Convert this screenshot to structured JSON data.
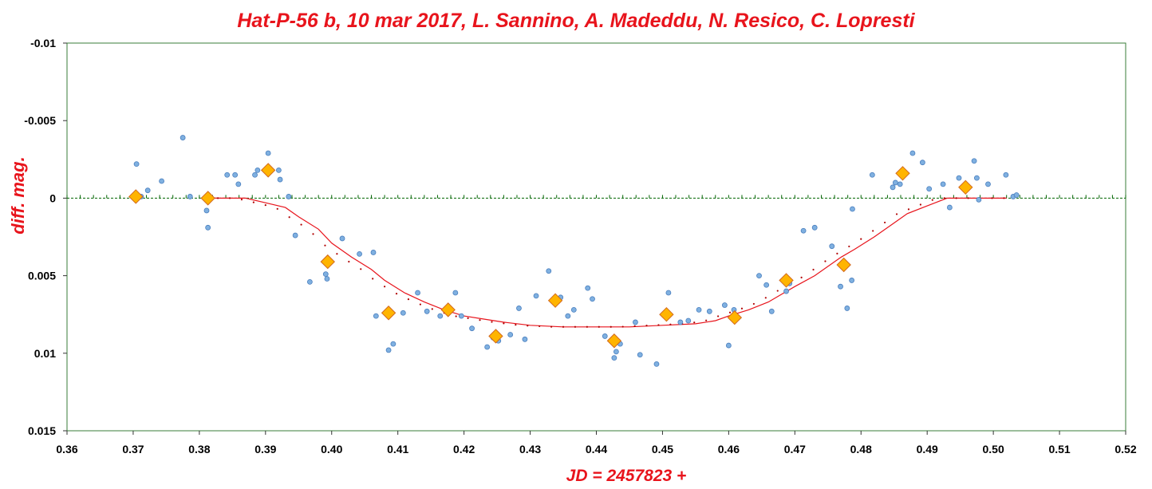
{
  "chart_data": {
    "type": "scatter",
    "title": "Hat-P-56 b, 10 mar 2017, L. Sannino, A. Madeddu, N. Resico, C. Lopresti",
    "xlabel": "JD = 2457823 +",
    "ylabel": "diff. mag.",
    "xlim": [
      0.36,
      0.52
    ],
    "ylim": [
      -0.01,
      0.015
    ],
    "y_inverted": true,
    "grid": false,
    "x_ticks": [
      "0.36",
      "0.37",
      "0.38",
      "0.39",
      "0.40",
      "0.41",
      "0.42",
      "0.43",
      "0.44",
      "0.45",
      "0.46",
      "0.47",
      "0.48",
      "0.49",
      "0.50",
      "0.51",
      "0.52"
    ],
    "x_tick_values": [
      0.36,
      0.37,
      0.38,
      0.39,
      0.4,
      0.41,
      0.42,
      0.43,
      0.44,
      0.45,
      0.46,
      0.47,
      0.48,
      0.49,
      0.5,
      0.51,
      0.52
    ],
    "y_ticks": [
      "-0.01",
      "-0.005",
      "0",
      "0.005",
      "0.01",
      "0.015"
    ],
    "y_tick_values": [
      -0.01,
      -0.005,
      0,
      0.005,
      0.01,
      0.015
    ],
    "colors": {
      "title": "#e8141c",
      "raw_points": "#7fb0e0",
      "raw_points_edge": "#4a7fbf",
      "binned_points": "#ffb400",
      "binned_points_edge": "#d2691e",
      "model_line": "#e8141c",
      "model_dots": "#b00000",
      "zero_line": "#006400",
      "plot_border": "#3a7d3a"
    },
    "series": [
      {
        "kind": "raw",
        "x": [
          0.3705,
          0.3712,
          0.3722,
          0.3743,
          0.3775,
          0.3786,
          0.3811,
          0.3813,
          0.3842,
          0.3854,
          0.3859,
          0.3884,
          0.3888,
          0.3904,
          0.392,
          0.3922,
          0.3935,
          0.3945,
          0.3967,
          0.3991,
          0.3993,
          0.4016,
          0.4042,
          0.4063,
          0.4067,
          0.4086,
          0.4093,
          0.4108,
          0.413,
          0.4144,
          0.4164,
          0.4176,
          0.4187,
          0.4196,
          0.4212,
          0.4235,
          0.4244,
          0.4252,
          0.427,
          0.4283,
          0.4292,
          0.4309,
          0.4328,
          0.4346,
          0.4357,
          0.4366,
          0.4387,
          0.4394,
          0.4413,
          0.4427,
          0.443,
          0.4432,
          0.4436,
          0.4459,
          0.4466,
          0.4491,
          0.4508,
          0.4509,
          0.4527,
          0.4539,
          0.4555,
          0.4571,
          0.4594,
          0.46,
          0.4608,
          0.4646,
          0.4657,
          0.4665,
          0.4687,
          0.4692,
          0.4713,
          0.473,
          0.4756,
          0.4769,
          0.4779,
          0.4786,
          0.4787,
          0.4817,
          0.4848,
          0.4852,
          0.4859,
          0.4878,
          0.4893,
          0.4903,
          0.4924,
          0.4934,
          0.4948,
          0.4971,
          0.4975,
          0.4978,
          0.4992,
          0.5019,
          0.503,
          0.5035
        ],
        "y": [
          -0.0022,
          -0.0001,
          -0.0005,
          -0.0011,
          -0.0039,
          -0.0001,
          0.0008,
          0.0019,
          -0.0015,
          -0.0015,
          -0.0009,
          -0.0015,
          -0.0018,
          -0.0029,
          -0.0018,
          -0.0012,
          -0.0001,
          0.0024,
          0.0054,
          0.0049,
          0.0052,
          0.0026,
          0.0036,
          0.0035,
          0.0076,
          0.0098,
          0.0094,
          0.0074,
          0.0061,
          0.0073,
          0.0076,
          0.0072,
          0.0061,
          0.0076,
          0.0084,
          0.0096,
          0.009,
          0.0092,
          0.0088,
          0.0071,
          0.0091,
          0.0063,
          0.0047,
          0.0064,
          0.0076,
          0.0072,
          0.0058,
          0.0065,
          0.0089,
          0.0103,
          0.0099,
          0.0092,
          0.0094,
          0.008,
          0.0101,
          0.0107,
          0.0075,
          0.0061,
          0.008,
          0.0079,
          0.0072,
          0.0073,
          0.0069,
          0.0095,
          0.0072,
          0.005,
          0.0056,
          0.0073,
          0.006,
          0.0055,
          0.0021,
          0.0019,
          0.0031,
          0.0057,
          0.0071,
          0.0053,
          0.0007,
          -0.0015,
          -0.0007,
          -0.001,
          -0.0009,
          -0.0029,
          -0.0023,
          -0.0006,
          -0.0009,
          0.0006,
          -0.0013,
          -0.0024,
          -0.0013,
          0.0001,
          -0.0009,
          -0.0015,
          -0.0001,
          -0.0002
        ]
      },
      {
        "kind": "binned",
        "x": [
          0.3704,
          0.3813,
          0.3904,
          0.3994,
          0.4086,
          0.4176,
          0.4248,
          0.4338,
          0.4427,
          0.4506,
          0.4609,
          0.4687,
          0.4774,
          0.4863,
          0.4958
        ],
        "y": [
          -0.0001,
          0.0,
          -0.0018,
          0.0041,
          0.0074,
          0.0072,
          0.0089,
          0.0066,
          0.0092,
          0.0075,
          0.0077,
          0.0053,
          0.0043,
          -0.0016,
          -0.0007
        ]
      },
      {
        "kind": "model",
        "x": [
          0.381,
          0.387,
          0.39,
          0.393,
          0.395,
          0.398,
          0.4,
          0.403,
          0.406,
          0.408,
          0.411,
          0.414,
          0.417,
          0.42,
          0.423,
          0.426,
          0.43,
          0.435,
          0.44,
          0.445,
          0.45,
          0.455,
          0.458,
          0.46,
          0.463,
          0.466,
          0.468,
          0.47,
          0.473,
          0.477,
          0.479,
          0.482,
          0.485,
          0.487,
          0.49,
          0.493,
          0.496,
          0.499,
          0.502
        ],
        "y": [
          0.0,
          0.0,
          0.0003,
          0.0006,
          0.0012,
          0.002,
          0.0029,
          0.0038,
          0.0046,
          0.0053,
          0.0061,
          0.0067,
          0.0072,
          0.0076,
          0.0078,
          0.008,
          0.0082,
          0.0083,
          0.0083,
          0.0083,
          0.0082,
          0.0081,
          0.0079,
          0.0076,
          0.0072,
          0.0067,
          0.0062,
          0.0057,
          0.005,
          0.0038,
          0.0033,
          0.0025,
          0.0016,
          0.001,
          0.0005,
          0.0,
          0.0,
          0.0,
          0.0
        ]
      }
    ]
  }
}
